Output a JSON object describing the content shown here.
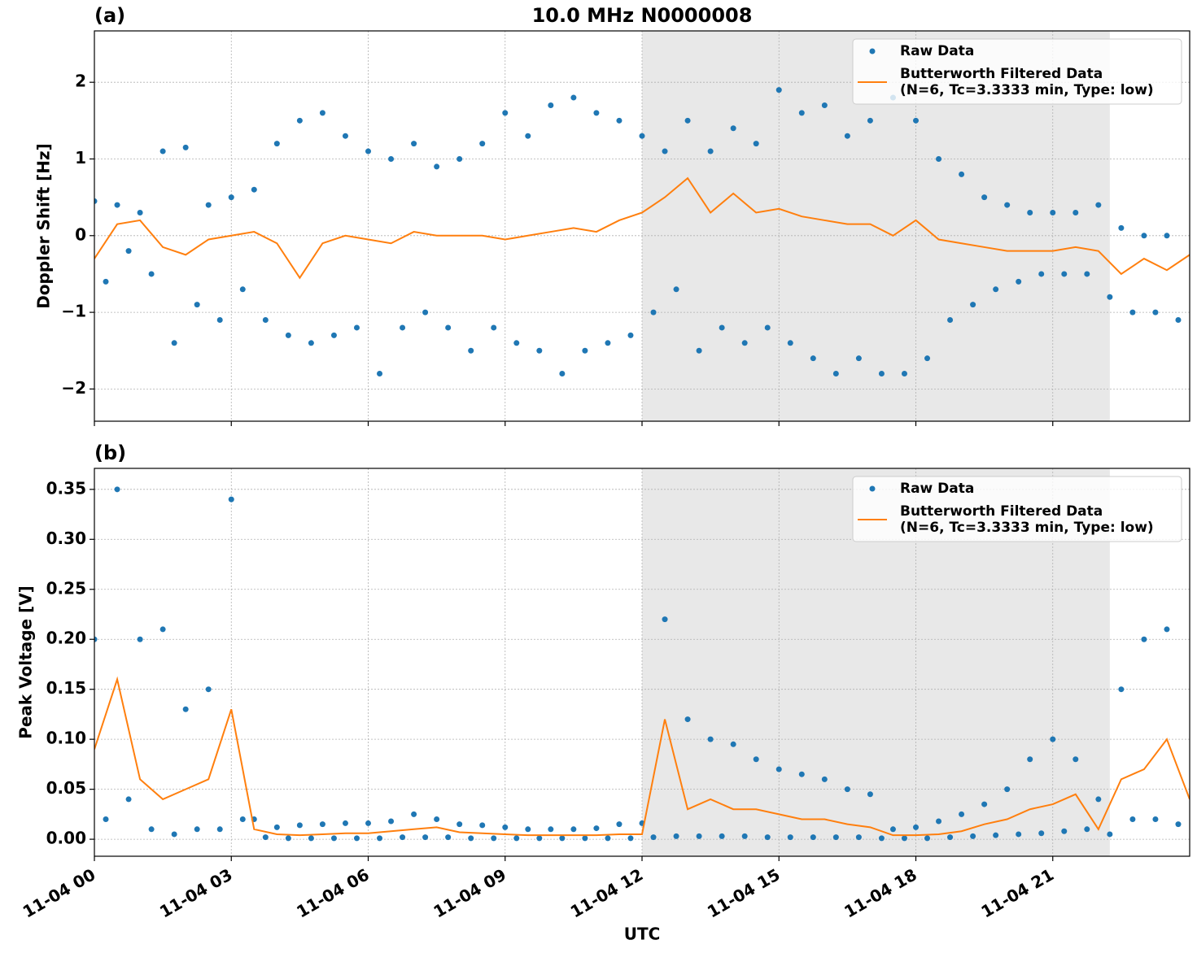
{
  "chart_data": [
    {
      "type": "scatter",
      "panel_label": "(a)",
      "title": "10.0 MHz N0000008",
      "ylabel": "Doppler Shift [Hz]",
      "xlim": [
        0,
        24
      ],
      "ylim": [
        -2.42,
        2.67
      ],
      "xticks": [
        0,
        3,
        6,
        9,
        12,
        15,
        18,
        21
      ],
      "yticks": [
        {
          "value": -2,
          "label": "−2"
        },
        {
          "value": -1,
          "label": "−1"
        },
        0,
        1,
        2
      ],
      "grid": true,
      "legend": "upper right",
      "shaded_span": [
        12,
        22.25
      ],
      "shaded_color": "#e8e8e8",
      "series": [
        {
          "name": "Raw Data",
          "color": "#1f77b4",
          "style": "markers",
          "x": [
            0,
            0.25,
            0.5,
            0.75,
            1,
            1.25,
            1.5,
            1.75,
            2,
            2.25,
            2.5,
            2.75,
            3,
            3.25,
            3.5,
            3.75,
            4,
            4.25,
            4.5,
            4.75,
            5,
            5.25,
            5.5,
            5.75,
            6,
            6.25,
            6.5,
            6.75,
            7,
            7.25,
            7.5,
            7.75,
            8,
            8.25,
            8.5,
            8.75,
            9,
            9.25,
            9.5,
            9.75,
            10,
            10.25,
            10.5,
            10.75,
            11,
            11.25,
            11.5,
            11.75,
            12,
            12.25,
            12.5,
            12.75,
            13,
            13.25,
            13.5,
            13.75,
            14,
            14.25,
            14.5,
            14.75,
            15,
            15.25,
            15.5,
            15.75,
            16,
            16.25,
            16.5,
            16.75,
            17,
            17.25,
            17.5,
            17.75,
            18,
            18.25,
            18.5,
            18.75,
            19,
            19.25,
            19.5,
            19.75,
            20,
            20.25,
            20.5,
            20.75,
            21,
            21.25,
            21.5,
            21.75,
            22,
            22.25,
            22.5,
            22.75,
            23,
            23.25,
            23.5,
            23.75
          ],
          "values": [
            0.45,
            -0.6,
            0.4,
            -0.2,
            0.3,
            -0.5,
            1.1,
            -1.4,
            1.15,
            -0.9,
            0.4,
            -1.1,
            0.5,
            -0.7,
            0.6,
            -1.1,
            1.2,
            -1.3,
            1.5,
            -1.4,
            1.6,
            -1.3,
            1.3,
            -1.2,
            1.1,
            -1.8,
            1.0,
            -1.2,
            1.2,
            -1.0,
            0.9,
            -1.2,
            1.0,
            -1.5,
            1.2,
            -1.2,
            1.6,
            -1.4,
            1.3,
            -1.5,
            1.7,
            -1.8,
            1.8,
            -1.5,
            1.6,
            -1.4,
            1.5,
            -1.3,
            1.3,
            -1.0,
            1.1,
            -0.7,
            1.5,
            -1.5,
            1.1,
            -1.2,
            1.4,
            -1.4,
            1.2,
            -1.2,
            1.9,
            -1.4,
            1.6,
            -1.6,
            1.7,
            -1.8,
            1.3,
            -1.6,
            1.5,
            -1.8,
            1.8,
            -1.8,
            1.5,
            -1.6,
            1.0,
            -1.1,
            0.8,
            -0.9,
            0.5,
            -0.7,
            0.4,
            -0.6,
            0.3,
            -0.5,
            0.3,
            -0.5,
            0.3,
            -0.5,
            0.4,
            -0.8,
            0.1,
            -1.0,
            0.0,
            -1.0,
            0.0,
            -1.1
          ]
        },
        {
          "name": "Butterworth Filtered Data\n(N=6, Tc=3.3333 min, Type: low)",
          "color": "#ff7f0e",
          "style": "line",
          "x": [
            0,
            0.5,
            1,
            1.5,
            2,
            2.5,
            3,
            3.5,
            4,
            4.5,
            5,
            5.5,
            6,
            6.5,
            7,
            7.5,
            8,
            8.5,
            9,
            9.5,
            10,
            10.5,
            11,
            11.5,
            12,
            12.5,
            13,
            13.5,
            14,
            14.5,
            15,
            15.5,
            16,
            16.5,
            17,
            17.5,
            18,
            18.5,
            19,
            19.5,
            20,
            20.5,
            21,
            21.5,
            22,
            22.5,
            23,
            23.5,
            24
          ],
          "values": [
            -0.3,
            0.15,
            0.2,
            -0.15,
            -0.25,
            -0.05,
            0.0,
            0.05,
            -0.1,
            -0.55,
            -0.1,
            0.0,
            -0.05,
            -0.1,
            0.05,
            0.0,
            0.0,
            0.0,
            -0.05,
            0.0,
            0.05,
            0.1,
            0.05,
            0.2,
            0.3,
            0.5,
            0.75,
            0.3,
            0.55,
            0.3,
            0.35,
            0.25,
            0.2,
            0.15,
            0.15,
            0.0,
            0.2,
            -0.05,
            -0.1,
            -0.15,
            -0.2,
            -0.2,
            -0.2,
            -0.15,
            -0.2,
            -0.5,
            -0.3,
            -0.45,
            -0.25
          ]
        }
      ]
    },
    {
      "type": "scatter",
      "panel_label": "(b)",
      "ylabel": "Peak Voltage [V]",
      "xlabel": "UTC",
      "xlim": [
        0,
        24
      ],
      "ylim": [
        -0.017,
        0.371
      ],
      "xticks": [
        {
          "value": 0,
          "label": "11-04 00"
        },
        {
          "value": 3,
          "label": "11-04 03"
        },
        {
          "value": 6,
          "label": "11-04 06"
        },
        {
          "value": 9,
          "label": "11-04 09"
        },
        {
          "value": 12,
          "label": "11-04 12"
        },
        {
          "value": 15,
          "label": "11-04 15"
        },
        {
          "value": 18,
          "label": "11-04 18"
        },
        {
          "value": 21,
          "label": "11-04 21"
        }
      ],
      "yticks": [
        {
          "value": 0,
          "label": "0.00"
        },
        0.05,
        {
          "value": 0.1,
          "label": "0.10"
        },
        0.15,
        {
          "value": 0.2,
          "label": "0.20"
        },
        0.25,
        {
          "value": 0.3,
          "label": "0.30"
        },
        0.35
      ],
      "grid": true,
      "legend": "upper right",
      "shaded_span": [
        12,
        22.25
      ],
      "shaded_color": "#e8e8e8",
      "series": [
        {
          "name": "Raw Data",
          "color": "#1f77b4",
          "style": "markers",
          "x": [
            0,
            0.25,
            0.5,
            0.75,
            1,
            1.25,
            1.5,
            1.75,
            2,
            2.25,
            2.5,
            2.75,
            3,
            3.25,
            3.5,
            3.75,
            4,
            4.25,
            4.5,
            4.75,
            5,
            5.25,
            5.5,
            5.75,
            6,
            6.25,
            6.5,
            6.75,
            7,
            7.25,
            7.5,
            7.75,
            8,
            8.25,
            8.5,
            8.75,
            9,
            9.25,
            9.5,
            9.75,
            10,
            10.25,
            10.5,
            10.75,
            11,
            11.25,
            11.5,
            11.75,
            12,
            12.25,
            12.5,
            12.75,
            13,
            13.25,
            13.5,
            13.75,
            14,
            14.25,
            14.5,
            14.75,
            15,
            15.25,
            15.5,
            15.75,
            16,
            16.25,
            16.5,
            16.75,
            17,
            17.25,
            17.5,
            17.75,
            18,
            18.25,
            18.5,
            18.75,
            19,
            19.25,
            19.5,
            19.75,
            20,
            20.25,
            20.5,
            20.75,
            21,
            21.25,
            21.5,
            21.75,
            22,
            22.25,
            22.5,
            22.75,
            23,
            23.25,
            23.5,
            23.75
          ],
          "values": [
            0.2,
            0.02,
            0.35,
            0.04,
            0.2,
            0.01,
            0.21,
            0.005,
            0.13,
            0.01,
            0.15,
            0.01,
            0.34,
            0.02,
            0.02,
            0.002,
            0.012,
            0.001,
            0.014,
            0.001,
            0.015,
            0.001,
            0.016,
            0.001,
            0.016,
            0.001,
            0.018,
            0.002,
            0.025,
            0.002,
            0.02,
            0.002,
            0.015,
            0.001,
            0.014,
            0.001,
            0.012,
            0.001,
            0.01,
            0.001,
            0.01,
            0.001,
            0.01,
            0.001,
            0.011,
            0.001,
            0.015,
            0.001,
            0.016,
            0.002,
            0.22,
            0.003,
            0.12,
            0.003,
            0.1,
            0.003,
            0.095,
            0.003,
            0.08,
            0.002,
            0.07,
            0.002,
            0.065,
            0.002,
            0.06,
            0.002,
            0.05,
            0.002,
            0.045,
            0.001,
            0.01,
            0.001,
            0.012,
            0.001,
            0.018,
            0.002,
            0.025,
            0.003,
            0.035,
            0.004,
            0.05,
            0.005,
            0.08,
            0.006,
            0.1,
            0.008,
            0.08,
            0.01,
            0.04,
            0.005,
            0.15,
            0.02,
            0.2,
            0.02,
            0.21,
            0.015
          ]
        },
        {
          "name": "Butterworth Filtered Data\n(N=6, Tc=3.3333 min, Type: low)",
          "color": "#ff7f0e",
          "style": "line",
          "x": [
            0,
            0.5,
            1,
            1.5,
            2,
            2.5,
            3,
            3.5,
            4,
            4.5,
            5,
            5.5,
            6,
            6.5,
            7,
            7.5,
            8,
            8.5,
            9,
            9.5,
            10,
            10.5,
            11,
            11.5,
            12,
            12.5,
            13,
            13.5,
            14,
            14.5,
            15,
            15.5,
            16,
            16.5,
            17,
            17.5,
            18,
            18.5,
            19,
            19.5,
            20,
            20.5,
            21,
            21.5,
            22,
            22.5,
            23,
            23.5,
            24
          ],
          "values": [
            0.09,
            0.16,
            0.06,
            0.04,
            0.05,
            0.06,
            0.13,
            0.01,
            0.005,
            0.004,
            0.005,
            0.006,
            0.006,
            0.008,
            0.01,
            0.012,
            0.007,
            0.006,
            0.005,
            0.004,
            0.004,
            0.004,
            0.004,
            0.005,
            0.005,
            0.12,
            0.03,
            0.04,
            0.03,
            0.03,
            0.025,
            0.02,
            0.02,
            0.015,
            0.012,
            0.004,
            0.004,
            0.005,
            0.008,
            0.015,
            0.02,
            0.03,
            0.035,
            0.045,
            0.01,
            0.06,
            0.07,
            0.1,
            0.04
          ]
        }
      ]
    }
  ]
}
